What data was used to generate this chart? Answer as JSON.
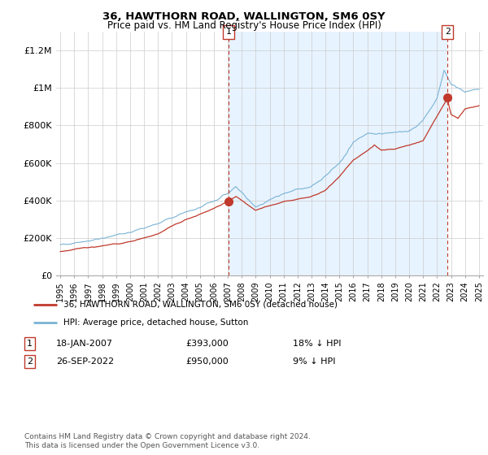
{
  "title": "36, HAWTHORN ROAD, WALLINGTON, SM6 0SY",
  "subtitle": "Price paid vs. HM Land Registry's House Price Index (HPI)",
  "legend_line1": "36, HAWTHORN ROAD, WALLINGTON, SM6 0SY (detached house)",
  "legend_line2": "HPI: Average price, detached house, Sutton",
  "sale1_date": "18-JAN-2007",
  "sale1_price": "£393,000",
  "sale1_hpi": "18% ↓ HPI",
  "sale2_date": "26-SEP-2022",
  "sale2_price": "£950,000",
  "sale2_hpi": "9% ↓ HPI",
  "footer": "Contains HM Land Registry data © Crown copyright and database right 2024.\nThis data is licensed under the Open Government Licence v3.0.",
  "hpi_color": "#7ab3d4",
  "price_color": "#c0392b",
  "vline_color": "#c0392b",
  "shade_color": "#ddeeff",
  "ylim": [
    0,
    1300000
  ],
  "yticks": [
    0,
    200000,
    400000,
    600000,
    800000,
    1000000,
    1200000
  ],
  "ytick_labels": [
    "£0",
    "£200K",
    "£400K",
    "£600K",
    "£800K",
    "£1M",
    "£1.2M"
  ],
  "sale1_year": 2007.05,
  "sale1_value": 393000,
  "sale2_year": 2022.74,
  "sale2_value": 950000
}
